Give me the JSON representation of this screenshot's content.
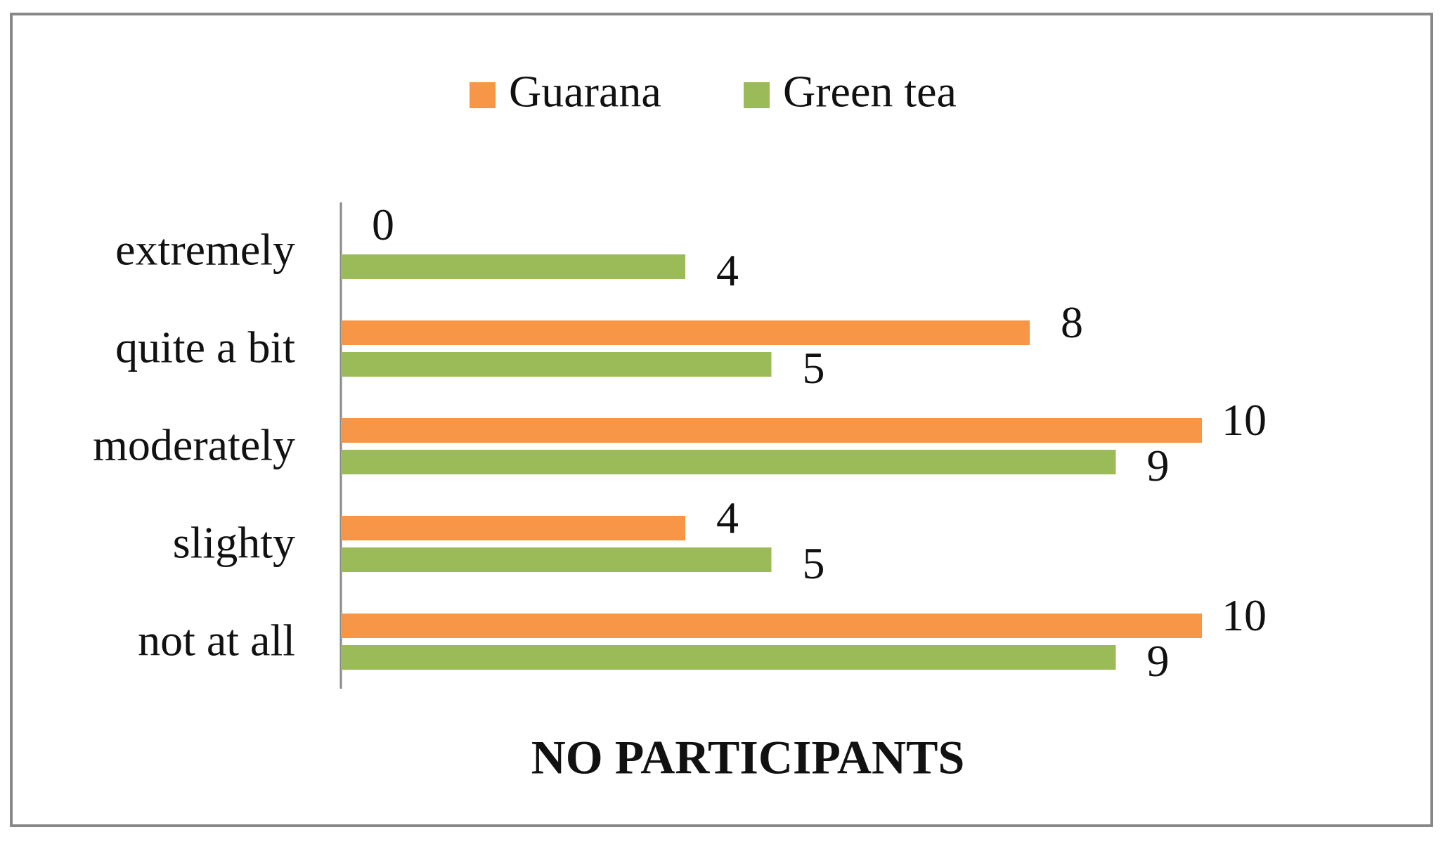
{
  "chart_data": {
    "type": "barh",
    "categories": [
      "extremely",
      "quite a bit",
      "moderately",
      "slighty",
      "not at all"
    ],
    "series": [
      {
        "name": "Guarana",
        "color": "#f79646",
        "values": [
          0,
          8,
          10,
          4,
          10
        ]
      },
      {
        "name": "Green tea",
        "color": "#9bbb59",
        "values": [
          4,
          5,
          9,
          5,
          9
        ]
      }
    ],
    "xlabel": "NO PARTICIPANTS",
    "xlim": [
      0,
      10
    ],
    "legend": "top"
  }
}
